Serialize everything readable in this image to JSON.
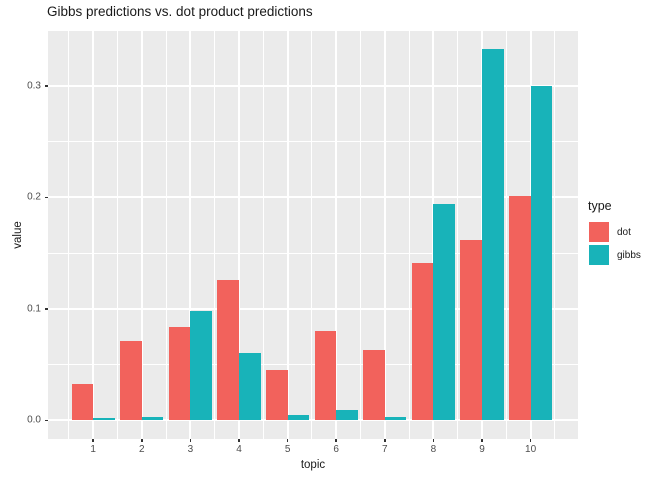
{
  "chart_data": {
    "type": "bar",
    "title": "Gibbs predictions vs. dot product predictions",
    "xlabel": "topic",
    "ylabel": "value",
    "categories": [
      "1",
      "2",
      "3",
      "4",
      "5",
      "6",
      "7",
      "8",
      "9",
      "10"
    ],
    "series": [
      {
        "name": "dot",
        "color": "#F2625C",
        "values": [
          0.033,
          0.071,
          0.084,
          0.126,
          0.045,
          0.08,
          0.063,
          0.141,
          0.162,
          0.201
        ]
      },
      {
        "name": "gibbs",
        "color": "#18B3B9",
        "values": [
          0.002,
          0.003,
          0.098,
          0.06,
          0.005,
          0.009,
          0.003,
          0.194,
          0.333,
          0.3
        ]
      }
    ],
    "y_ticks": [
      "0.0",
      "0.1",
      "0.2",
      "0.3"
    ],
    "y_tick_values": [
      0.0,
      0.1,
      0.2,
      0.3
    ],
    "y_minor_values": [
      0.05,
      0.15,
      0.25
    ],
    "ylim": [
      -0.0167,
      0.3493
    ],
    "legend_title": "type",
    "legend_position": "right",
    "grid": true,
    "panel_bg": "#EBEBEB",
    "grid_color": "#FFFFFF"
  }
}
